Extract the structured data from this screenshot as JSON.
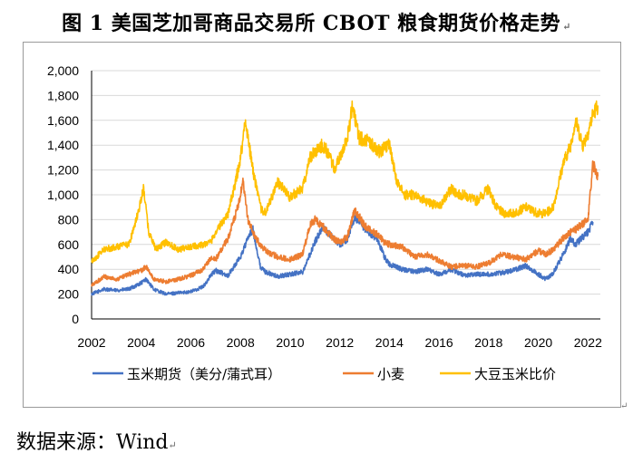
{
  "title": "图 1  美国芝加哥商品交易所 CBOT 粮食期货价格走势",
  "source": "数据来源：Wind",
  "chart_data": {
    "type": "line",
    "title": "图 1  美国芝加哥商品交易所 CBOT 粮食期货价格走势",
    "xlabel": "",
    "ylabel": "",
    "xlim": [
      2002,
      2022.5
    ],
    "ylim": [
      0,
      2000
    ],
    "xticks": [
      2002,
      2004,
      2006,
      2008,
      2010,
      2012,
      2014,
      2016,
      2018,
      2020,
      2022
    ],
    "yticks": [
      0,
      200,
      400,
      600,
      800,
      1000,
      1200,
      1400,
      1600,
      1800,
      2000
    ],
    "ytick_labels": [
      "0",
      "200",
      "400",
      "600",
      "800",
      "1,000",
      "1,200",
      "1,400",
      "1,600",
      "1,800",
      "2,000"
    ],
    "grid": "horizontal",
    "legend_position": "bottom",
    "series": [
      {
        "name": "玉米期货（美分/蒲式耳）",
        "color": "#4472C4",
        "x": [
          2002.0,
          2002.5,
          2003.0,
          2003.5,
          2004.0,
          2004.2,
          2004.5,
          2005.0,
          2005.5,
          2006.0,
          2006.5,
          2006.8,
          2007.0,
          2007.5,
          2008.0,
          2008.3,
          2008.5,
          2008.8,
          2009.0,
          2009.5,
          2010.0,
          2010.5,
          2010.8,
          2011.0,
          2011.3,
          2011.5,
          2011.8,
          2012.0,
          2012.3,
          2012.6,
          2013.0,
          2013.5,
          2013.8,
          2014.0,
          2014.5,
          2015.0,
          2015.5,
          2016.0,
          2016.5,
          2017.0,
          2017.5,
          2018.0,
          2018.5,
          2019.0,
          2019.5,
          2020.0,
          2020.3,
          2020.6,
          2021.0,
          2021.3,
          2021.5,
          2022.0,
          2022.2
        ],
        "values": [
          200,
          240,
          230,
          240,
          290,
          320,
          240,
          200,
          210,
          220,
          260,
          350,
          390,
          350,
          500,
          650,
          720,
          420,
          380,
          340,
          360,
          380,
          520,
          620,
          740,
          700,
          640,
          600,
          640,
          820,
          720,
          650,
          500,
          440,
          400,
          380,
          400,
          360,
          400,
          350,
          360,
          360,
          370,
          390,
          430,
          360,
          320,
          370,
          520,
          650,
          600,
          700,
          780
        ]
      },
      {
        "name": "小麦",
        "color": "#ED7D31",
        "x": [
          2002.0,
          2002.5,
          2003.0,
          2003.5,
          2004.0,
          2004.2,
          2004.5,
          2005.0,
          2005.5,
          2006.0,
          2006.5,
          2006.8,
          2007.0,
          2007.5,
          2007.9,
          2008.1,
          2008.3,
          2008.6,
          2009.0,
          2009.5,
          2010.0,
          2010.5,
          2010.8,
          2011.0,
          2011.3,
          2011.5,
          2011.8,
          2012.0,
          2012.3,
          2012.6,
          2013.0,
          2013.5,
          2013.8,
          2014.0,
          2014.5,
          2015.0,
          2015.5,
          2016.0,
          2016.5,
          2017.0,
          2017.5,
          2018.0,
          2018.5,
          2019.0,
          2019.5,
          2020.0,
          2020.3,
          2020.6,
          2021.0,
          2021.3,
          2021.5,
          2022.0,
          2022.2,
          2022.4
        ],
        "values": [
          270,
          340,
          320,
          360,
          390,
          420,
          320,
          300,
          320,
          350,
          400,
          490,
          480,
          650,
          900,
          1100,
          800,
          650,
          550,
          500,
          480,
          520,
          760,
          800,
          750,
          700,
          640,
          620,
          660,
          880,
          750,
          680,
          620,
          600,
          580,
          500,
          520,
          470,
          420,
          430,
          420,
          450,
          520,
          500,
          480,
          550,
          520,
          560,
          650,
          700,
          720,
          800,
          1250,
          1150
        ]
      },
      {
        "name": "大豆玉米比价",
        "color": "#FFC000",
        "x": [
          2002.0,
          2002.5,
          2003.0,
          2003.5,
          2003.8,
          2004.1,
          2004.3,
          2004.6,
          2005.0,
          2005.5,
          2006.0,
          2006.5,
          2006.8,
          2007.0,
          2007.5,
          2007.8,
          2008.0,
          2008.2,
          2008.5,
          2008.8,
          2009.0,
          2009.5,
          2010.0,
          2010.5,
          2010.8,
          2011.0,
          2011.3,
          2011.5,
          2011.8,
          2012.0,
          2012.3,
          2012.5,
          2012.8,
          2013.0,
          2013.3,
          2013.6,
          2014.0,
          2014.3,
          2014.6,
          2015.0,
          2015.5,
          2016.0,
          2016.5,
          2016.8,
          2017.0,
          2017.5,
          2018.0,
          2018.3,
          2018.6,
          2019.0,
          2019.5,
          2020.0,
          2020.3,
          2020.6,
          2021.0,
          2021.3,
          2021.5,
          2021.8,
          2022.0,
          2022.2,
          2022.4
        ],
        "values": [
          460,
          560,
          580,
          600,
          800,
          1050,
          700,
          560,
          620,
          560,
          580,
          600,
          620,
          700,
          850,
          1100,
          1300,
          1600,
          1200,
          900,
          850,
          1100,
          980,
          1050,
          1300,
          1350,
          1400,
          1350,
          1200,
          1300,
          1450,
          1700,
          1450,
          1450,
          1400,
          1350,
          1400,
          1100,
          1000,
          1000,
          950,
          900,
          1050,
          1000,
          1000,
          950,
          1050,
          900,
          850,
          850,
          900,
          850,
          850,
          900,
          1250,
          1400,
          1600,
          1400,
          1500,
          1650,
          1720
        ]
      }
    ]
  }
}
